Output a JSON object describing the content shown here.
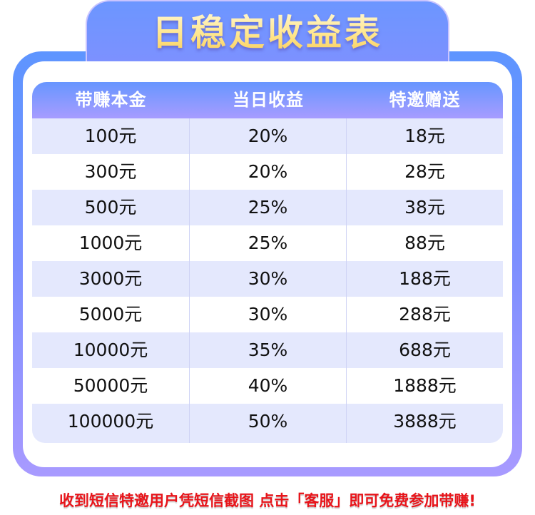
{
  "title": "日稳定收益表",
  "headers": [
    "带赚本金",
    "当日收益",
    "特邀赠送"
  ],
  "rows": [
    [
      "100元",
      "20%",
      "18元"
    ],
    [
      "300元",
      "20%",
      "28元"
    ],
    [
      "500元",
      "25%",
      "38元"
    ],
    [
      "1000元",
      "25%",
      "88元"
    ],
    [
      "3000元",
      "30%",
      "188元"
    ],
    [
      "5000元",
      "30%",
      "288元"
    ],
    [
      "10000元",
      "35%",
      "688元"
    ],
    [
      "50000元",
      "40%",
      "1888元"
    ],
    [
      "100000元",
      "50%",
      "3888元"
    ]
  ],
  "footer_note": "收到短信特邀用户凭短信截图 点击「客服」即可免费参加带赚!",
  "colors": {
    "frame_top": "#5e95ff",
    "frame_bottom": "#a89aff",
    "row_alt": "#e4e8fd",
    "note": "#e8141a",
    "title": "#ffe58a"
  }
}
